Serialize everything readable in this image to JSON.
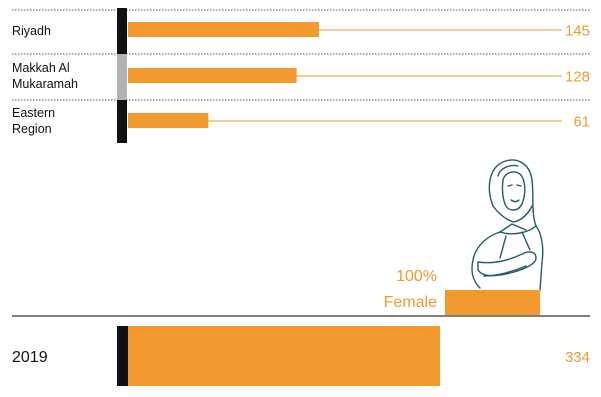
{
  "colors": {
    "accent": "#f29a2e",
    "dark_marker": "#111111",
    "grey_marker": "#b3b3b3",
    "illustration_stroke": "#1f5c66"
  },
  "chart_data": [
    {
      "type": "bar",
      "orientation": "horizontal",
      "categories": [
        "Riyadh",
        "Makkah Al Mukaramah",
        "Eastern Region"
      ],
      "category_lines": [
        [
          "Riyadh"
        ],
        [
          "Makkah Al",
          "Mukaramah"
        ],
        [
          "Eastern",
          "Region"
        ]
      ],
      "values": [
        145,
        128,
        61
      ],
      "value_labels": [
        "145",
        "128",
        "61"
      ],
      "marker_colors": [
        "#111111",
        "#b3b3b3",
        "#111111"
      ],
      "xlim": [
        0,
        334
      ]
    },
    {
      "type": "bar",
      "orientation": "horizontal",
      "categories": [
        "2019"
      ],
      "values": [
        334
      ],
      "value_labels": [
        "334"
      ],
      "xlim": [
        0,
        334
      ]
    }
  ],
  "female_share": {
    "percent_label": "100%",
    "word": "Female",
    "value": 1.0
  }
}
